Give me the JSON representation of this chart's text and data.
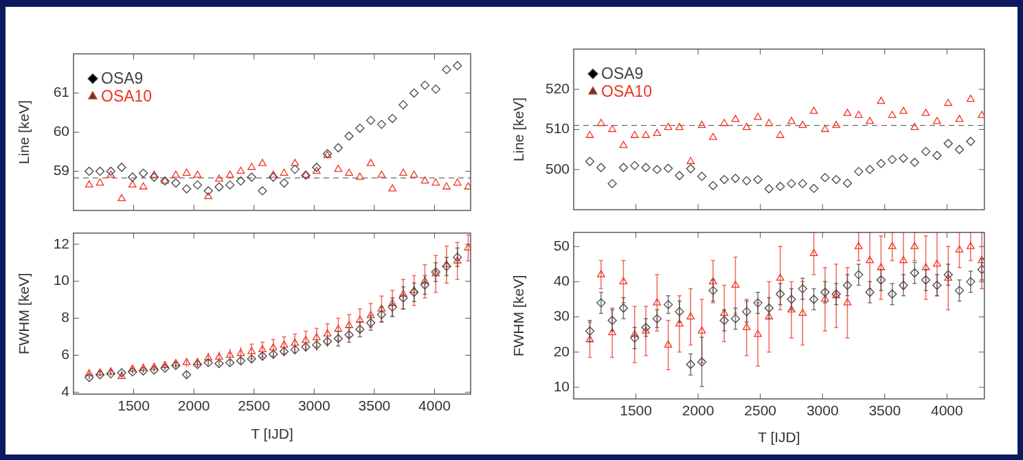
{
  "chart_data": [
    {
      "type": "scatter",
      "ylabel": "Line [keV]",
      "xlim": [
        1000,
        4300
      ],
      "xticks": [
        1500,
        2000,
        2500,
        3000,
        3500,
        4000
      ],
      "ylim": [
        58,
        62
      ],
      "yticks": [
        59,
        60,
        61
      ],
      "tick_labels": "y",
      "legend": "top left",
      "x": [
        1130,
        1220,
        1310,
        1400,
        1490,
        1580,
        1670,
        1760,
        1850,
        1940,
        2030,
        2120,
        2210,
        2300,
        2390,
        2480,
        2570,
        2660,
        2750,
        2840,
        2930,
        3020,
        3110,
        3200,
        3290,
        3380,
        3470,
        3560,
        3650,
        3740,
        3830,
        3920,
        4010,
        4100,
        4190,
        4280
      ],
      "ref_lines": [
        {
          "axis": "y",
          "value": 58.83,
          "color": "#666666",
          "line_style": "dashed"
        }
      ],
      "series": [
        {
          "name": "OSA9",
          "color": "#444444",
          "marker": "diamond",
          "values": [
            59.0,
            59.0,
            59.0,
            59.1,
            58.85,
            58.95,
            58.85,
            58.75,
            58.7,
            58.55,
            58.65,
            58.5,
            58.6,
            58.65,
            58.75,
            58.85,
            58.5,
            58.85,
            58.7,
            59.05,
            58.9,
            59.1,
            59.45,
            59.6,
            59.9,
            60.1,
            60.3,
            60.2,
            60.35,
            60.7,
            61.0,
            61.2,
            61.1,
            61.6,
            61.7,
            null
          ]
        },
        {
          "name": "OSA10",
          "color": "#ee3322",
          "marker": "triangle",
          "values": [
            58.65,
            58.7,
            58.9,
            58.3,
            58.65,
            58.6,
            58.9,
            58.75,
            58.9,
            58.95,
            58.9,
            58.35,
            58.8,
            58.9,
            59.0,
            59.1,
            59.2,
            58.9,
            58.95,
            59.2,
            58.9,
            59.0,
            59.4,
            59.05,
            58.95,
            58.85,
            59.2,
            58.9,
            58.55,
            58.95,
            58.9,
            58.75,
            58.7,
            58.6,
            58.7,
            58.6
          ]
        }
      ]
    },
    {
      "type": "scatter",
      "xlabel": "T [IJD]",
      "ylabel": "FWHM [keV]",
      "xlim": [
        1000,
        4300
      ],
      "xticks": [
        1500,
        2000,
        2500,
        3000,
        3500,
        4000
      ],
      "ylim": [
        3.9,
        12.6
      ],
      "yticks": [
        4,
        6,
        8,
        10,
        12
      ],
      "x": [
        1130,
        1220,
        1310,
        1400,
        1490,
        1580,
        1670,
        1760,
        1850,
        1940,
        2030,
        2120,
        2210,
        2300,
        2390,
        2480,
        2570,
        2660,
        2750,
        2840,
        2930,
        3020,
        3110,
        3200,
        3290,
        3380,
        3470,
        3560,
        3650,
        3740,
        3830,
        3920,
        4010,
        4100,
        4190,
        4280
      ],
      "series": [
        {
          "color": "#444444",
          "marker": "diamond",
          "values": [
            4.8,
            4.95,
            5.0,
            5.05,
            5.1,
            5.15,
            5.2,
            5.3,
            5.45,
            4.95,
            5.5,
            5.6,
            5.55,
            5.6,
            5.7,
            5.8,
            5.95,
            6.05,
            6.2,
            6.3,
            6.45,
            6.55,
            6.75,
            6.9,
            7.1,
            7.4,
            7.75,
            8.2,
            8.6,
            9.1,
            9.4,
            9.8,
            10.5,
            10.8,
            11.3,
            null
          ],
          "errors": [
            0.1,
            0.1,
            0.1,
            0.1,
            0.1,
            0.1,
            0.1,
            0.1,
            0.15,
            0.15,
            0.15,
            0.15,
            0.15,
            0.15,
            0.2,
            0.2,
            0.2,
            0.2,
            0.25,
            0.25,
            0.25,
            0.3,
            0.3,
            0.4,
            0.4,
            0.4,
            0.4,
            0.4,
            0.5,
            0.6,
            0.5,
            0.5,
            0.5,
            0.5,
            0.5,
            null
          ]
        },
        {
          "color": "#ee3322",
          "marker": "triangle",
          "values": [
            5.0,
            5.05,
            5.1,
            4.85,
            5.25,
            5.3,
            5.35,
            5.45,
            5.55,
            5.6,
            5.6,
            5.85,
            5.9,
            6.0,
            6.1,
            6.2,
            6.3,
            6.4,
            6.55,
            6.65,
            6.8,
            6.95,
            7.15,
            7.4,
            7.6,
            7.9,
            8.15,
            8.5,
            8.8,
            9.3,
            9.5,
            10.0,
            10.4,
            10.9,
            11.1,
            11.8
          ],
          "errors": [
            0.15,
            0.15,
            0.15,
            0.15,
            0.2,
            0.2,
            0.2,
            0.2,
            0.2,
            0.25,
            0.25,
            0.3,
            0.3,
            0.35,
            0.35,
            0.4,
            0.4,
            0.45,
            0.45,
            0.5,
            0.5,
            0.5,
            0.55,
            0.6,
            0.6,
            0.6,
            0.65,
            0.7,
            0.7,
            0.8,
            0.8,
            0.9,
            1.0,
            1.0,
            1.0,
            0.7
          ]
        }
      ]
    },
    {
      "type": "scatter",
      "ylabel": "Line [keV]",
      "xlim": [
        1000,
        4300
      ],
      "xticks": [
        1500,
        2000,
        2500,
        3000,
        3500,
        4000
      ],
      "ylim": [
        490,
        530
      ],
      "yticks": [
        500,
        510,
        520
      ],
      "tick_labels": "y",
      "legend": "top left",
      "x": [
        1130,
        1220,
        1310,
        1400,
        1490,
        1580,
        1670,
        1760,
        1850,
        1940,
        2030,
        2120,
        2210,
        2300,
        2390,
        2480,
        2570,
        2660,
        2750,
        2840,
        2930,
        3020,
        3110,
        3200,
        3290,
        3380,
        3470,
        3560,
        3650,
        3740,
        3830,
        3920,
        4010,
        4100,
        4190,
        4280
      ],
      "ref_lines": [
        {
          "axis": "y",
          "value": 511,
          "color": "#666666",
          "line_style": "dashed"
        }
      ],
      "series": [
        {
          "name": "OSA9",
          "color": "#444444",
          "marker": "diamond",
          "values": [
            502,
            500.5,
            496.5,
            500.5,
            501,
            500.5,
            500,
            500.3,
            498.5,
            500.2,
            498.3,
            496,
            497.5,
            497.8,
            497.2,
            497.5,
            495.2,
            495.8,
            496.5,
            496.5,
            495.3,
            498,
            497.5,
            496.6,
            499.5,
            500,
            501.5,
            502.5,
            502.8,
            501.8,
            504.5,
            503.5,
            506.5,
            505,
            507,
            null
          ]
        },
        {
          "name": "OSA10",
          "color": "#ee3322",
          "marker": "triangle",
          "values": [
            508.5,
            511.5,
            510,
            506,
            508.5,
            508.5,
            509,
            510.5,
            510.5,
            502,
            511,
            508,
            511.5,
            512.5,
            510.5,
            513,
            511.5,
            508.5,
            512,
            511,
            514.5,
            510,
            511,
            514,
            513.5,
            512,
            517,
            513.5,
            514.5,
            510.5,
            514,
            512,
            516.5,
            512.5,
            517.5,
            513.5
          ]
        }
      ]
    },
    {
      "type": "scatter",
      "xlabel": "T [IJD]",
      "ylabel": "FWHM [keV]",
      "xlim": [
        1000,
        4300
      ],
      "xticks": [
        1500,
        2000,
        2500,
        3000,
        3500,
        4000
      ],
      "ylim": [
        6.7,
        54
      ],
      "yticks": [
        10,
        20,
        30,
        40,
        50
      ],
      "x": [
        1130,
        1220,
        1310,
        1400,
        1490,
        1580,
        1670,
        1760,
        1850,
        1940,
        2030,
        2120,
        2210,
        2300,
        2390,
        2480,
        2570,
        2660,
        2750,
        2840,
        2930,
        3020,
        3110,
        3200,
        3290,
        3380,
        3470,
        3560,
        3650,
        3740,
        3830,
        3920,
        4010,
        4100,
        4190,
        4280
      ],
      "series": [
        {
          "color": "#444444",
          "marker": "diamond",
          "values": [
            26,
            34,
            29,
            32.5,
            24,
            27,
            29.5,
            33.5,
            31.5,
            16.5,
            17.2,
            37.5,
            29,
            29.5,
            31.5,
            34,
            32.5,
            36.5,
            35,
            38,
            35,
            37,
            36.5,
            39,
            42,
            37,
            40.5,
            36.5,
            39,
            42.5,
            40.5,
            39,
            42,
            37.5,
            40,
            43.5
          ],
          "errors": [
            3,
            3,
            3,
            3,
            3,
            2.5,
            2.5,
            2.5,
            3,
            3,
            7,
            3,
            3,
            3,
            3,
            3,
            3,
            3,
            3,
            3,
            3,
            3,
            3,
            3,
            3,
            3,
            3,
            3,
            3,
            3,
            3,
            3,
            3,
            3,
            3,
            3
          ]
        },
        {
          "color": "#ee3322",
          "marker": "triangle",
          "values": [
            23.5,
            42,
            25.5,
            40,
            25,
            26,
            34,
            22,
            28,
            30,
            26,
            40,
            31,
            39,
            27,
            25,
            30,
            41,
            32,
            31,
            48,
            35,
            36,
            34,
            50,
            46,
            44,
            50,
            46,
            50,
            44,
            45,
            41,
            49,
            50,
            46
          ],
          "errors": [
            5,
            4,
            7,
            6,
            8,
            7,
            8,
            7,
            8,
            8,
            9,
            6,
            8,
            8,
            8,
            9,
            10,
            9,
            8,
            9,
            6,
            9,
            9,
            10,
            4,
            8,
            9,
            4,
            8,
            4,
            9,
            9,
            9,
            5,
            4,
            8
          ]
        }
      ]
    }
  ]
}
